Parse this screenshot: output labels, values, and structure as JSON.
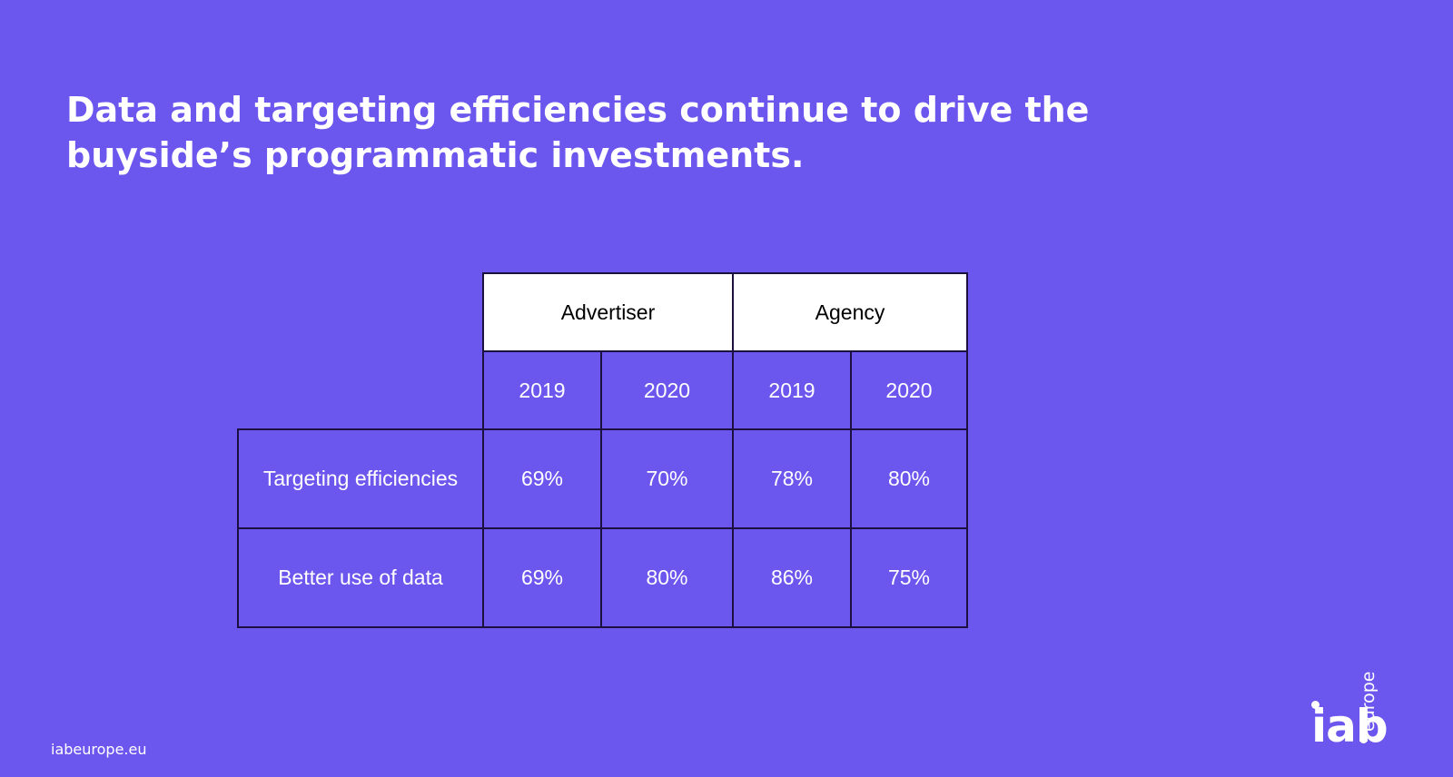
{
  "slide": {
    "title_line1": "Data and targeting efficiencies continue to drive the",
    "title_line2": "buyside’s programmatic investments."
  },
  "table": {
    "groups": [
      "Advertiser",
      "Agency"
    ],
    "years": [
      "2019",
      "2020",
      "2019",
      "2020"
    ],
    "rows": [
      {
        "label": "Targeting efficiencies",
        "values": [
          "69%",
          "70%",
          "78%",
          "80%"
        ]
      },
      {
        "label": "Better use of data",
        "values": [
          "69%",
          "80%",
          "86%",
          "75%"
        ]
      }
    ]
  },
  "footer": {
    "url": "iabeurope.eu"
  },
  "logo": {
    "main": "iab",
    "sub": "europe"
  },
  "colors": {
    "background": "#6c57ee",
    "header_fill": "#ffffff",
    "border": "#1b1040"
  }
}
